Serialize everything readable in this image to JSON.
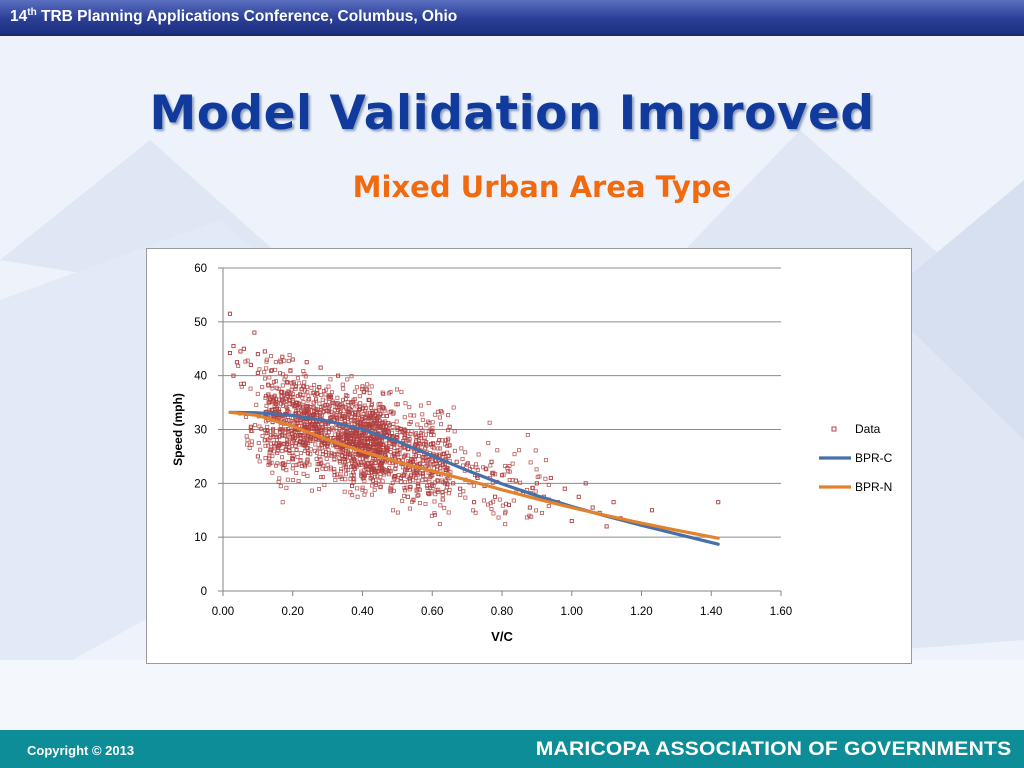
{
  "header": {
    "conference_prefix": "14",
    "conference_sup": "th",
    "conference_rest": " TRB Planning Applications Conference, Columbus, Ohio"
  },
  "slide": {
    "title": "Model Validation Improved",
    "subtitle": "Mixed Urban Area Type"
  },
  "footer": {
    "copyright": "Copyright © 2013",
    "organization": "MARICOPA ASSOCIATION OF GOVERNMENTS"
  },
  "colors": {
    "title": "#103a9c",
    "subtitle": "#f26a0f",
    "data_marker": "#b04040",
    "bpr_c": "#4670a8",
    "bpr_n": "#e3822c",
    "footer_bar": "#0d8d98"
  },
  "chart_data": {
    "type": "scatter",
    "xlabel": "V/C",
    "ylabel": "Speed (mph)",
    "xlim": [
      0.0,
      1.6
    ],
    "ylim": [
      0,
      60
    ],
    "x_ticks": [
      "0.00",
      "0.20",
      "0.40",
      "0.60",
      "0.80",
      "1.00",
      "1.20",
      "1.40",
      "1.60"
    ],
    "y_ticks": [
      "0",
      "10",
      "20",
      "30",
      "40",
      "50",
      "60"
    ],
    "grid": "horizontal",
    "legend_position": "right",
    "series": [
      {
        "name": "Data",
        "kind": "scatter",
        "marker": "hollow-square",
        "note_points": "dense cloud of roughly 2000 observations; representative sample listed",
        "points": [
          [
            0.02,
            51.5
          ],
          [
            0.03,
            45.5
          ],
          [
            0.02,
            44.2
          ],
          [
            0.03,
            40.0
          ],
          [
            0.04,
            42.5
          ],
          [
            0.05,
            44.5
          ],
          [
            0.06,
            45.0
          ],
          [
            0.06,
            38.5
          ],
          [
            0.09,
            48.0
          ],
          [
            0.08,
            42.0
          ],
          [
            0.1,
            44.0
          ],
          [
            0.1,
            40.5
          ],
          [
            0.12,
            44.5
          ],
          [
            0.14,
            41.0
          ],
          [
            0.17,
            43.5
          ],
          [
            0.2,
            43.0
          ],
          [
            0.24,
            42.5
          ],
          [
            0.28,
            41.5
          ],
          [
            0.33,
            40.0
          ],
          [
            0.4,
            38.0
          ],
          [
            0.05,
            33.0
          ],
          [
            0.08,
            30.5
          ],
          [
            0.1,
            25.0
          ],
          [
            0.12,
            28.0
          ],
          [
            0.13,
            36.5
          ],
          [
            0.15,
            32.0
          ],
          [
            0.16,
            27.0
          ],
          [
            0.18,
            30.0
          ],
          [
            0.19,
            35.5
          ],
          [
            0.2,
            24.5
          ],
          [
            0.21,
            33.0
          ],
          [
            0.22,
            29.0
          ],
          [
            0.23,
            38.0
          ],
          [
            0.24,
            26.5
          ],
          [
            0.25,
            31.5
          ],
          [
            0.26,
            35.0
          ],
          [
            0.27,
            22.5
          ],
          [
            0.28,
            30.0
          ],
          [
            0.29,
            27.5
          ],
          [
            0.3,
            33.5
          ],
          [
            0.31,
            36.0
          ],
          [
            0.32,
            21.5
          ],
          [
            0.33,
            28.5
          ],
          [
            0.34,
            32.0
          ],
          [
            0.35,
            25.0
          ],
          [
            0.36,
            34.5
          ],
          [
            0.37,
            19.5
          ],
          [
            0.38,
            29.5
          ],
          [
            0.39,
            23.5
          ],
          [
            0.4,
            31.0
          ],
          [
            0.41,
            27.0
          ],
          [
            0.42,
            35.5
          ],
          [
            0.43,
            20.5
          ],
          [
            0.44,
            26.0
          ],
          [
            0.45,
            30.5
          ],
          [
            0.46,
            22.0
          ],
          [
            0.47,
            32.5
          ],
          [
            0.48,
            18.5
          ],
          [
            0.49,
            25.5
          ],
          [
            0.5,
            28.5
          ],
          [
            0.51,
            21.0
          ],
          [
            0.52,
            30.0
          ],
          [
            0.53,
            17.5
          ],
          [
            0.54,
            24.5
          ],
          [
            0.55,
            27.0
          ],
          [
            0.56,
            19.5
          ],
          [
            0.57,
            23.0
          ],
          [
            0.58,
            26.5
          ],
          [
            0.59,
            18.0
          ],
          [
            0.6,
            21.5
          ],
          [
            0.61,
            25.0
          ],
          [
            0.62,
            28.0
          ],
          [
            0.63,
            17.0
          ],
          [
            0.64,
            22.5
          ],
          [
            0.65,
            30.5
          ],
          [
            0.66,
            20.0
          ],
          [
            0.67,
            24.0
          ],
          [
            0.68,
            19.0
          ],
          [
            0.7,
            23.5
          ],
          [
            0.72,
            16.5
          ],
          [
            0.73,
            21.0
          ],
          [
            0.75,
            19.5
          ],
          [
            0.77,
            24.0
          ],
          [
            0.78,
            17.5
          ],
          [
            0.8,
            21.5
          ],
          [
            0.82,
            16.0
          ],
          [
            0.84,
            20.5
          ],
          [
            0.86,
            18.0
          ],
          [
            0.88,
            15.5
          ],
          [
            0.9,
            20.0
          ],
          [
            0.92,
            17.5
          ],
          [
            0.94,
            21.0
          ],
          [
            0.96,
            16.5
          ],
          [
            0.98,
            19.0
          ],
          [
            1.0,
            13.0
          ],
          [
            1.02,
            17.5
          ],
          [
            1.04,
            20.0
          ],
          [
            1.06,
            15.5
          ],
          [
            1.08,
            14.5
          ],
          [
            1.1,
            12.0
          ],
          [
            1.12,
            16.5
          ],
          [
            1.14,
            13.5
          ],
          [
            1.23,
            15.0
          ],
          [
            1.42,
            16.5
          ]
        ]
      },
      {
        "name": "BPR-C",
        "kind": "line",
        "points": [
          [
            0.02,
            33.2
          ],
          [
            0.1,
            33.1
          ],
          [
            0.2,
            32.6
          ],
          [
            0.3,
            31.6
          ],
          [
            0.4,
            30.0
          ],
          [
            0.5,
            27.8
          ],
          [
            0.6,
            25.1
          ],
          [
            0.7,
            22.4
          ],
          [
            0.8,
            19.9
          ],
          [
            0.9,
            17.7
          ],
          [
            1.0,
            15.7
          ],
          [
            1.1,
            13.9
          ],
          [
            1.2,
            12.2
          ],
          [
            1.3,
            10.6
          ],
          [
            1.42,
            8.7
          ]
        ]
      },
      {
        "name": "BPR-N",
        "kind": "line",
        "points": [
          [
            0.02,
            33.2
          ],
          [
            0.1,
            32.6
          ],
          [
            0.2,
            30.6
          ],
          [
            0.3,
            28.1
          ],
          [
            0.4,
            25.9
          ],
          [
            0.5,
            24.0
          ],
          [
            0.6,
            22.3
          ],
          [
            0.7,
            20.6
          ],
          [
            0.8,
            18.8
          ],
          [
            0.9,
            17.1
          ],
          [
            1.0,
            15.5
          ],
          [
            1.1,
            14.0
          ],
          [
            1.2,
            12.6
          ],
          [
            1.3,
            11.3
          ],
          [
            1.42,
            9.8
          ]
        ]
      }
    ]
  }
}
